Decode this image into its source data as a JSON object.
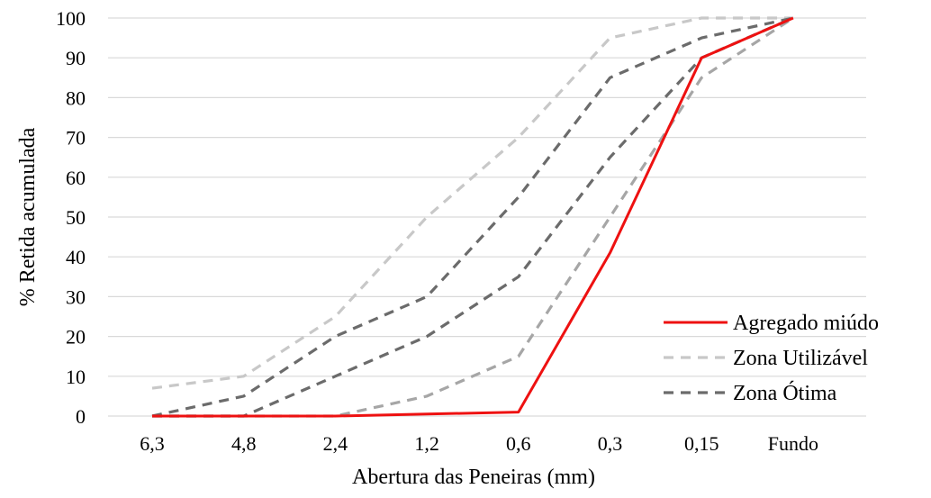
{
  "chart_data": {
    "type": "line",
    "title": "",
    "xlabel": "Abertura das Peneiras (mm)",
    "ylabel": "% Retida acumulada",
    "categories": [
      "6,3",
      "4,8",
      "2,4",
      "1,2",
      "0,6",
      "0,3",
      "0,15",
      "Fundo"
    ],
    "ylim": [
      0,
      100
    ],
    "yticks": [
      0,
      10,
      20,
      30,
      40,
      50,
      60,
      70,
      80,
      90,
      100
    ],
    "grid": "horizontal",
    "legend_position": "bottom-right",
    "series": [
      {
        "name": "Agregado miúdo",
        "values": [
          0,
          0,
          0,
          0.5,
          1,
          41,
          90,
          100
        ],
        "color": "#ee1111",
        "style": "solid",
        "show_in_legend": true
      },
      {
        "name": "Zona Utilizável",
        "values": [
          7,
          10,
          25,
          50,
          70,
          95,
          100,
          100
        ],
        "color": "#c8c8c8",
        "style": "dashed",
        "show_in_legend": true
      },
      {
        "name": "",
        "values": [
          0,
          0,
          0,
          5,
          15,
          50,
          85,
          100
        ],
        "color": "#a6a6a6",
        "style": "dashed",
        "show_in_legend": false
      },
      {
        "name": "Zona Ótima",
        "values": [
          0,
          5,
          20,
          30,
          55,
          85,
          95,
          100
        ],
        "color": "#6b6b6b",
        "style": "dashed",
        "show_in_legend": true
      },
      {
        "name": "",
        "values": [
          0,
          0,
          10,
          20,
          35,
          65,
          90,
          100
        ],
        "color": "#6b6b6b",
        "style": "dashed",
        "show_in_legend": false
      }
    ]
  }
}
